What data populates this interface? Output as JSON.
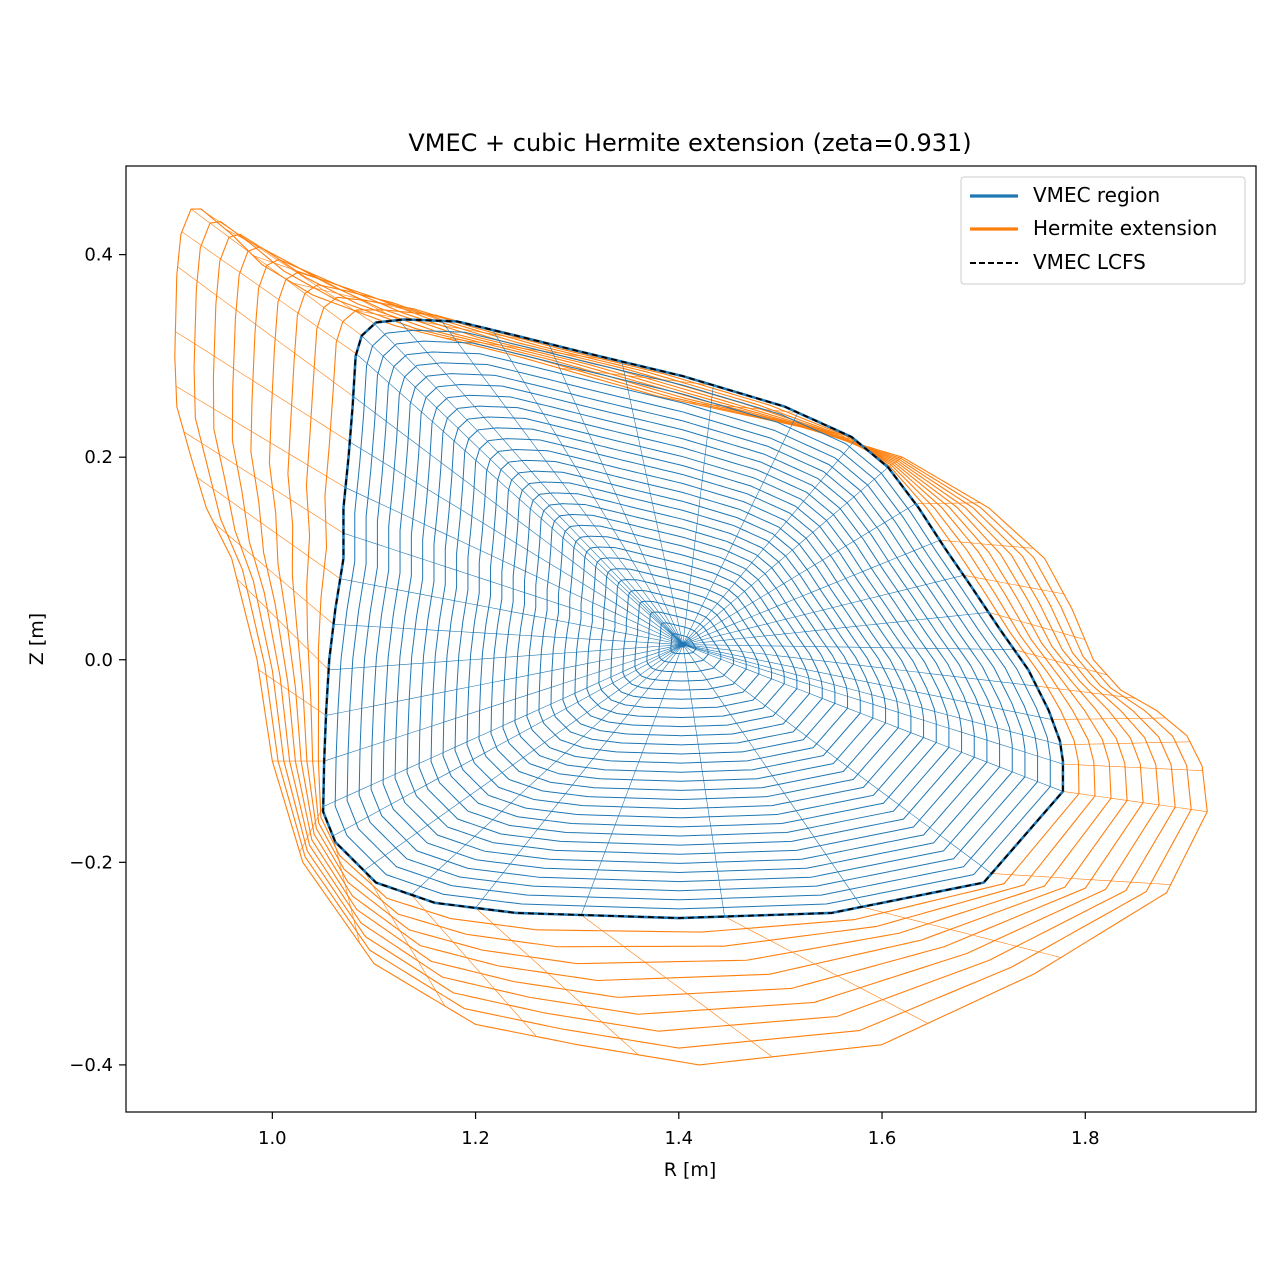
{
  "chart_data": {
    "type": "line",
    "title": "VMEC + cubic Hermite extension (zeta=0.931)",
    "xlabel": "R [m]",
    "ylabel": "Z [m]",
    "xlim": [
      0.856,
      1.968
    ],
    "ylim": [
      -0.4465,
      0.4875
    ],
    "xticks": [
      1.0,
      1.2,
      1.4,
      1.6,
      1.8
    ],
    "yticks": [
      -0.4,
      -0.2,
      0.0,
      0.2,
      0.4
    ],
    "xtick_labels": [
      "1.0",
      "1.2",
      "1.4",
      "1.6",
      "1.8"
    ],
    "ytick_labels": [
      "−0.4",
      "−0.2",
      "0.0",
      "0.2",
      "0.4"
    ],
    "grid": false,
    "legend_position": "top-right",
    "axis_center": [
      1.404,
      0.015
    ],
    "vmec_surfaces": 30,
    "extension_surfaces": 9,
    "poloidal_lines": 40,
    "series": [
      {
        "name": "VMEC region",
        "color": "#1f77b4",
        "style": "solid",
        "outline_point_count": 36,
        "boundary_R": [
          1.778,
          1.778,
          1.775,
          1.764,
          1.744,
          1.716,
          1.688,
          1.662,
          1.636,
          1.606,
          1.57,
          1.504,
          1.404,
          1.304,
          1.24,
          1.182,
          1.13,
          1.102,
          1.088,
          1.082,
          1.079,
          1.075,
          1.07,
          1.07,
          1.062,
          1.056,
          1.053,
          1.051,
          1.05,
          1.062,
          1.102,
          1.16,
          1.24,
          1.4,
          1.55,
          1.7
        ],
        "boundary_Z": [
          -0.13,
          -0.1,
          -0.08,
          -0.05,
          -0.01,
          0.03,
          0.072,
          0.11,
          0.15,
          0.19,
          0.22,
          0.25,
          0.28,
          0.304,
          0.32,
          0.334,
          0.336,
          0.333,
          0.32,
          0.3,
          0.25,
          0.2,
          0.15,
          0.1,
          0.05,
          0.0,
          -0.05,
          -0.1,
          -0.15,
          -0.18,
          -0.22,
          -0.24,
          -0.25,
          -0.255,
          -0.25,
          -0.22
        ]
      },
      {
        "name": "Hermite extension",
        "color": "#ff7f0e",
        "style": "solid",
        "outline_point_count": 36,
        "outer_R": [
          1.92,
          1.915,
          1.9,
          1.87,
          1.835,
          1.808,
          1.787,
          1.76,
          1.705,
          1.62,
          1.52,
          1.38,
          1.24,
          1.12,
          1.04,
          0.99,
          0.96,
          0.93,
          0.92,
          0.91,
          0.906,
          0.904,
          0.906,
          0.92,
          0.935,
          0.96,
          0.985,
          1.0,
          1.03,
          1.1,
          1.2,
          1.3,
          1.42,
          1.6,
          1.75,
          1.88
        ],
        "outer_Z": [
          -0.15,
          -0.105,
          -0.075,
          -0.05,
          -0.03,
          0.0,
          0.05,
          0.1,
          0.15,
          0.2,
          0.23,
          0.26,
          0.3,
          0.33,
          0.36,
          0.39,
          0.42,
          0.445,
          0.445,
          0.42,
          0.38,
          0.3,
          0.25,
          0.2,
          0.15,
          0.1,
          0.0,
          -0.1,
          -0.2,
          -0.3,
          -0.36,
          -0.38,
          -0.4,
          -0.38,
          -0.31,
          -0.23
        ]
      },
      {
        "name": "VMEC LCFS",
        "color": "#000000",
        "style": "dashed"
      }
    ]
  }
}
